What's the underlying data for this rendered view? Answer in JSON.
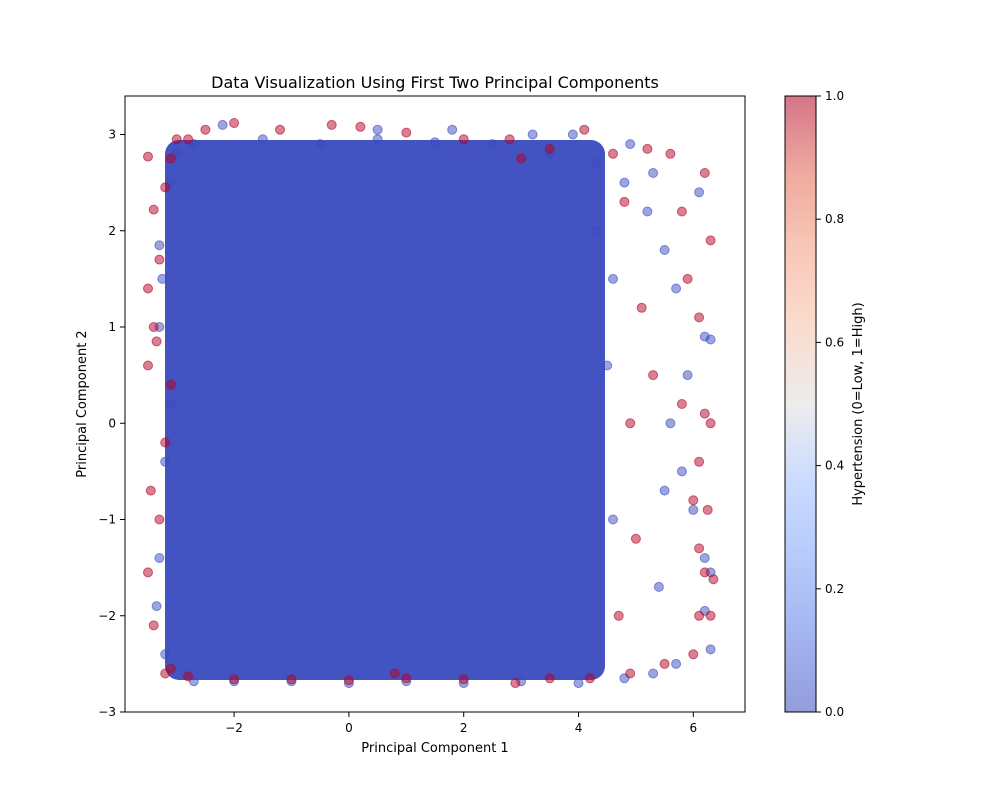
{
  "chart_data": {
    "type": "scatter",
    "title": "Data Visualization Using First Two Principal Components",
    "xlabel": "Principal Component 1",
    "ylabel": "Principal Component 2",
    "xlim": [
      -3.9,
      6.9
    ],
    "ylim": [
      -3,
      3.4
    ],
    "xticks": [
      -2,
      0,
      2,
      4,
      6
    ],
    "yticks": [
      -3,
      -2,
      -1,
      0,
      1,
      2,
      3
    ],
    "grid": false,
    "series": [
      {
        "color_value": 0,
        "color": "#3b4cc0",
        "points": [
          [
            -2.7,
            2.9
          ],
          [
            -1.5,
            2.95
          ],
          [
            -0.5,
            2.9
          ],
          [
            0.5,
            2.95
          ],
          [
            1.5,
            2.92
          ],
          [
            2.5,
            2.9
          ],
          [
            3.5,
            2.8
          ],
          [
            4.3,
            2.7
          ],
          [
            4.8,
            2.5
          ],
          [
            5.2,
            2.2
          ],
          [
            5.5,
            1.8
          ],
          [
            5.7,
            1.4
          ],
          [
            6.2,
            0.9
          ],
          [
            6.3,
            0.87
          ],
          [
            5.9,
            0.5
          ],
          [
            5.6,
            0.0
          ],
          [
            5.8,
            -0.5
          ],
          [
            6.0,
            -0.9
          ],
          [
            6.2,
            -1.4
          ],
          [
            6.3,
            -1.55
          ],
          [
            6.2,
            -1.95
          ],
          [
            6.3,
            -2.35
          ],
          [
            5.7,
            -2.5
          ],
          [
            5.3,
            -2.6
          ],
          [
            4.8,
            -2.65
          ],
          [
            4.0,
            -2.7
          ],
          [
            3.0,
            -2.68
          ],
          [
            2.0,
            -2.7
          ],
          [
            1.0,
            -2.68
          ],
          [
            0.0,
            -2.7
          ],
          [
            -1.0,
            -2.68
          ],
          [
            -2.0,
            -2.68
          ],
          [
            -2.7,
            -2.68
          ],
          [
            -3.2,
            -2.4
          ],
          [
            -3.35,
            -1.9
          ],
          [
            -3.3,
            -1.4
          ],
          [
            -3.2,
            -0.4
          ],
          [
            -3.1,
            0.2
          ],
          [
            -3.3,
            1.0
          ],
          [
            -3.25,
            1.5
          ],
          [
            -3.3,
            1.85
          ],
          [
            -3.1,
            2.5
          ],
          [
            -3.0,
            2.8
          ],
          [
            -2.2,
            3.1
          ],
          [
            0.5,
            3.05
          ],
          [
            1.8,
            3.05
          ],
          [
            3.2,
            3.0
          ],
          [
            3.9,
            3.0
          ],
          [
            4.9,
            2.9
          ],
          [
            5.3,
            2.6
          ],
          [
            6.1,
            2.4
          ],
          [
            5.5,
            -0.7
          ],
          [
            5.4,
            -1.7
          ],
          [
            4.6,
            -1.0
          ],
          [
            4.5,
            0.6
          ],
          [
            4.6,
            1.5
          ],
          [
            4.3,
            2.0
          ]
        ]
      },
      {
        "color_value": 1,
        "color": "#b40426",
        "points": [
          [
            -3.0,
            2.95
          ],
          [
            -2.5,
            3.05
          ],
          [
            -2.0,
            3.12
          ],
          [
            -1.2,
            3.05
          ],
          [
            -0.3,
            3.1
          ],
          [
            0.2,
            3.08
          ],
          [
            1.0,
            3.02
          ],
          [
            2.0,
            2.95
          ],
          [
            2.8,
            2.95
          ],
          [
            3.5,
            2.85
          ],
          [
            4.1,
            3.05
          ],
          [
            4.6,
            2.8
          ],
          [
            5.2,
            2.85
          ],
          [
            5.6,
            2.8
          ],
          [
            6.2,
            2.6
          ],
          [
            6.3,
            1.9
          ],
          [
            5.8,
            2.2
          ],
          [
            5.9,
            1.5
          ],
          [
            6.1,
            1.1
          ],
          [
            5.8,
            0.2
          ],
          [
            6.2,
            0.1
          ],
          [
            6.3,
            0.0
          ],
          [
            6.1,
            -0.4
          ],
          [
            6.0,
            -0.8
          ],
          [
            6.25,
            -0.9
          ],
          [
            6.1,
            -1.3
          ],
          [
            6.2,
            -1.55
          ],
          [
            6.35,
            -1.62
          ],
          [
            6.1,
            -2.0
          ],
          [
            6.3,
            -2.0
          ],
          [
            6.0,
            -2.4
          ],
          [
            5.5,
            -2.5
          ],
          [
            4.9,
            -2.6
          ],
          [
            4.2,
            -2.65
          ],
          [
            3.5,
            -2.65
          ],
          [
            2.9,
            -2.7
          ],
          [
            2.0,
            -2.66
          ],
          [
            1.0,
            -2.65
          ],
          [
            0.0,
            -2.67
          ],
          [
            -1.0,
            -2.66
          ],
          [
            -2.0,
            -2.66
          ],
          [
            -2.8,
            -2.63
          ],
          [
            -3.1,
            -2.55
          ],
          [
            -3.4,
            -2.1
          ],
          [
            -3.5,
            -1.55
          ],
          [
            -3.3,
            -1.0
          ],
          [
            -3.45,
            -0.7
          ],
          [
            -3.2,
            -0.2
          ],
          [
            -3.1,
            0.4
          ],
          [
            -3.5,
            0.6
          ],
          [
            -3.4,
            1.0
          ],
          [
            -3.5,
            1.4
          ],
          [
            -3.3,
            1.7
          ],
          [
            -3.4,
            2.22
          ],
          [
            -3.2,
            2.45
          ],
          [
            -3.1,
            2.75
          ],
          [
            -3.5,
            2.77
          ],
          [
            -2.8,
            2.95
          ],
          [
            4.9,
            0.0
          ],
          [
            5.0,
            -1.2
          ],
          [
            5.1,
            1.2
          ],
          [
            4.7,
            -2.0
          ],
          [
            5.3,
            0.5
          ],
          [
            4.8,
            2.3
          ],
          [
            3.0,
            2.75
          ],
          [
            0.8,
            -2.6
          ],
          [
            -3.2,
            -2.6
          ],
          [
            -3.35,
            0.85
          ]
        ]
      }
    ],
    "colorbar": {
      "label": "Hypertension (0=Low, 1=High)",
      "range": [
        0.0,
        1.0
      ],
      "ticks": [
        "0.0",
        "0.2",
        "0.4",
        "0.6",
        "0.8",
        "1.0"
      ],
      "colormap": "coolwarm",
      "alpha": 0.5
    }
  }
}
